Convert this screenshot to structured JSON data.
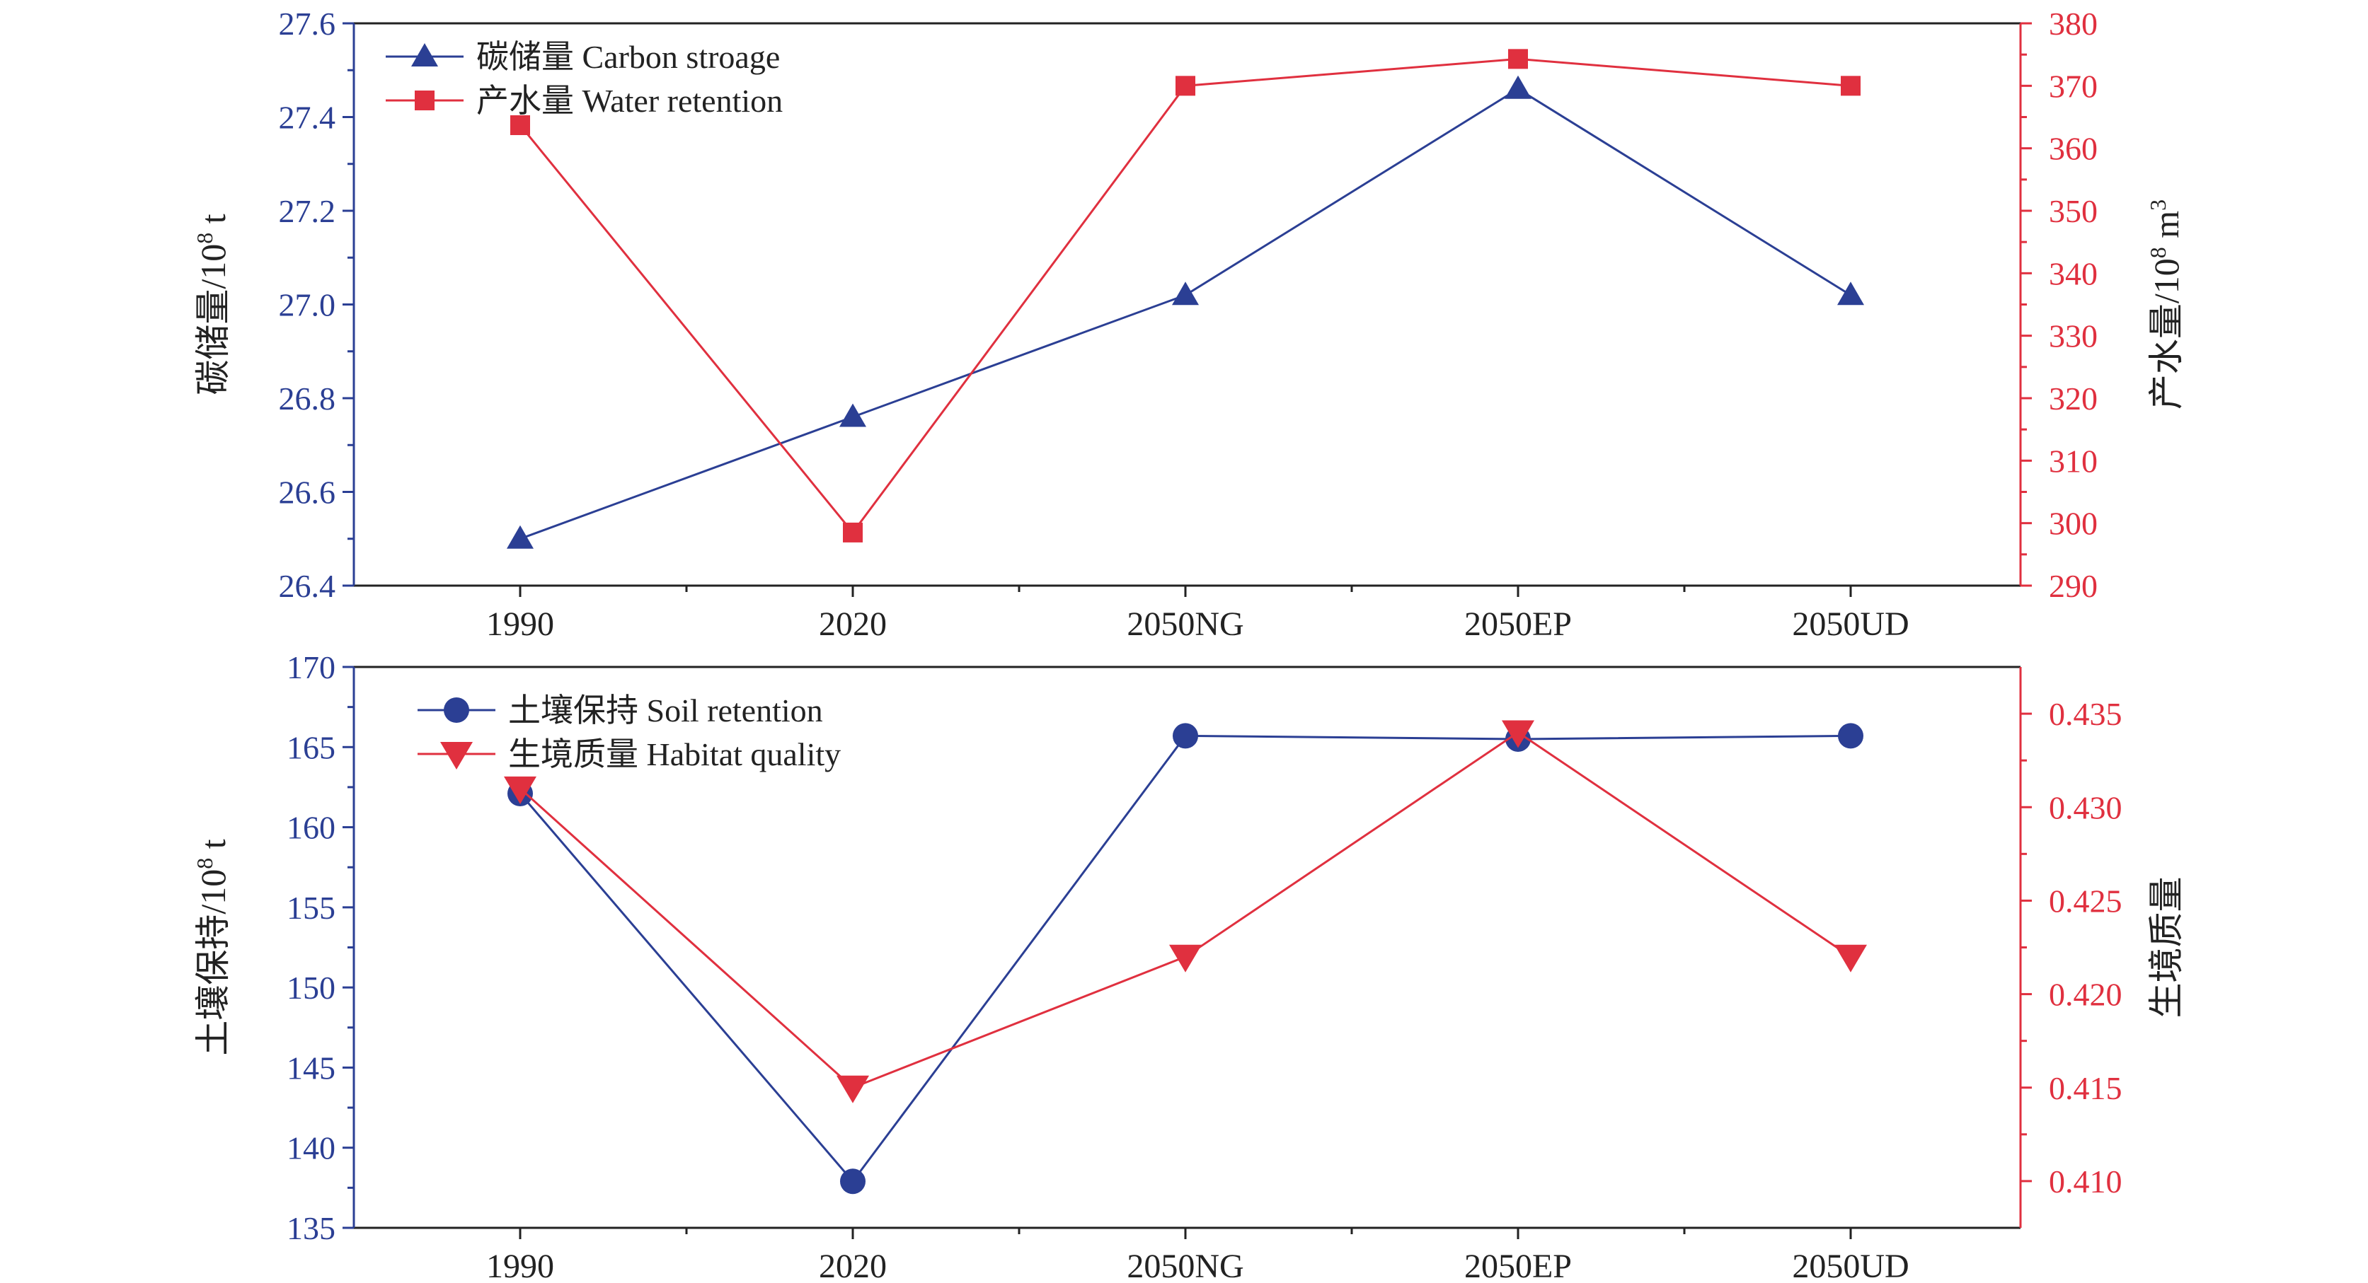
{
  "colors": {
    "blue": "#2b3f94",
    "red": "#e0303f",
    "axis": "#222222"
  },
  "chart_data": [
    {
      "type": "line",
      "categories": [
        "1990",
        "2020",
        "2050NG",
        "2050EP",
        "2050UD"
      ],
      "left_axis": {
        "label_main": "碳储量/10",
        "label_sup": "8",
        "label_tail": " t",
        "ylim": [
          26.4,
          27.6
        ],
        "ticks": [
          "26.4",
          "26.6",
          "26.8",
          "27.0",
          "27.2",
          "27.4",
          "27.6"
        ]
      },
      "right_axis": {
        "label_main": "产水量/10",
        "label_sup": "8",
        "label_tail": " m",
        "label_sup2": "3",
        "ylim": [
          290,
          380
        ],
        "ticks": [
          "290",
          "300",
          "310",
          "320",
          "330",
          "340",
          "350",
          "360",
          "370",
          "380"
        ]
      },
      "series": [
        {
          "name": "碳储量 Carbon stroage",
          "axis": "left",
          "color": "#2b3f94",
          "marker": "triangle-up",
          "values": [
            26.5,
            26.76,
            27.02,
            27.46,
            27.02
          ]
        },
        {
          "name": "产水量 Water retention",
          "axis": "right",
          "color": "#e0303f",
          "marker": "square",
          "values": [
            363.7,
            298.5,
            370.0,
            374.3,
            370.0
          ]
        }
      ]
    },
    {
      "type": "line",
      "categories": [
        "1990",
        "2020",
        "2050NG",
        "2050EP",
        "2050UD"
      ],
      "left_axis": {
        "label_main": "土壤保持/10",
        "label_sup": "8",
        "label_tail": " t",
        "ylim": [
          135,
          170
        ],
        "ticks": [
          "135",
          "140",
          "145",
          "150",
          "155",
          "160",
          "165",
          "170"
        ]
      },
      "right_axis": {
        "label_main": "生境质量",
        "label_sup": "",
        "label_tail": "",
        "label_sup2": "",
        "ylim": [
          0.4075,
          0.4375
        ],
        "ticks": [
          "0.410",
          "0.415",
          "0.420",
          "0.425",
          "0.430",
          "0.435"
        ]
      },
      "series": [
        {
          "name": "土壤保持 Soil retention",
          "axis": "left",
          "color": "#2b3f94",
          "marker": "circle",
          "values": [
            162.1,
            137.9,
            165.7,
            165.5,
            165.7
          ]
        },
        {
          "name": "生境质量 Habitat quality",
          "axis": "right",
          "color": "#e0303f",
          "marker": "triangle-down",
          "values": [
            0.431,
            0.415,
            0.422,
            0.434,
            0.422
          ]
        }
      ]
    }
  ]
}
